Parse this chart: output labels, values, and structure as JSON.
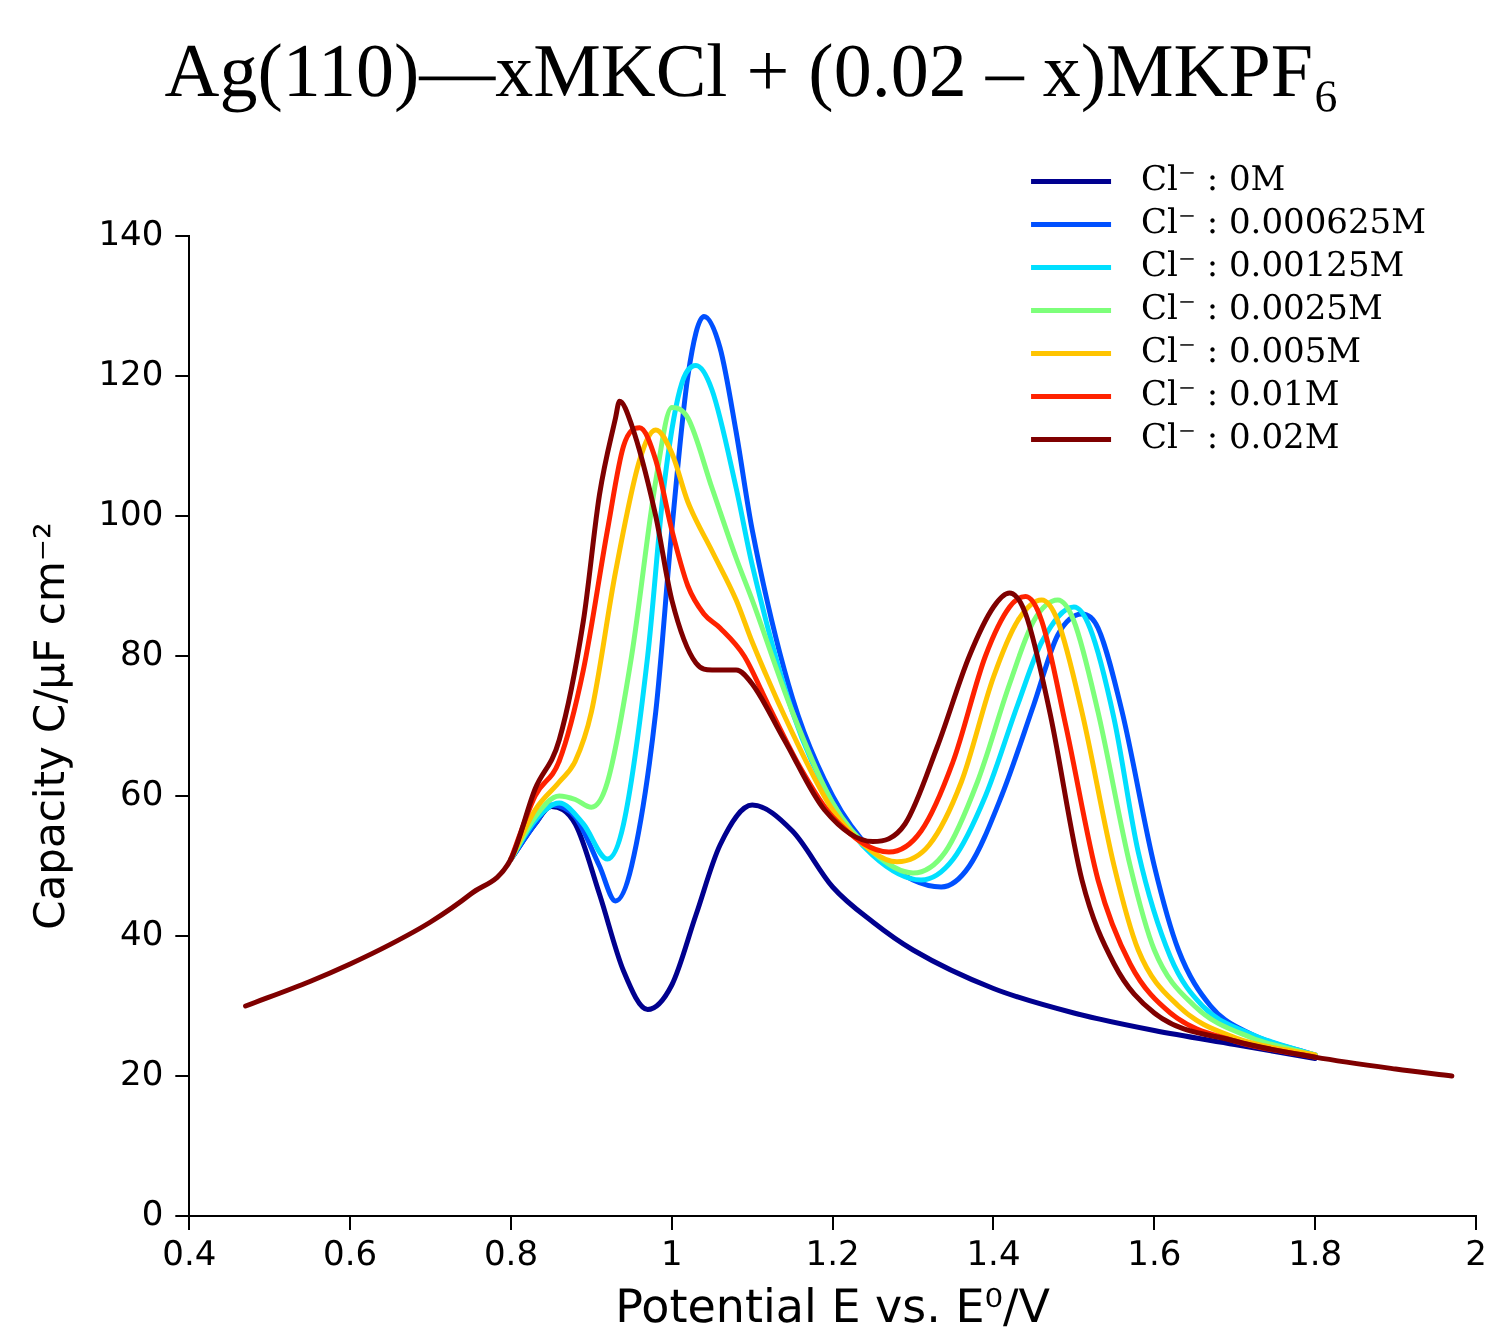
{
  "chart_data": {
    "type": "line",
    "title": "Ag(110)—xMKCl + (0.02 – x)MKPF₆",
    "xlabel": "Potential E vs. E⁰/V",
    "ylabel": "Capacity C/μF cm⁻²",
    "xlim": [
      0.4,
      2
    ],
    "xticks": [
      0.4,
      0.6,
      0.8,
      1,
      1.2,
      1.4,
      1.6,
      1.8,
      2
    ],
    "ylim": [
      0,
      140
    ],
    "yticks": [
      0,
      20,
      40,
      60,
      80,
      100,
      120,
      140
    ],
    "legend": "top right",
    "marker": "none",
    "line_style": "solid",
    "series": [
      {
        "name": "Cl⁻ : 0M",
        "color": "#00008f",
        "x": [
          0.8,
          0.83,
          0.85,
          0.88,
          0.91,
          0.94,
          0.97,
          1.0,
          1.03,
          1.06,
          1.1,
          1.15,
          1.2,
          1.25,
          1.3,
          1.4,
          1.5,
          1.6,
          1.7,
          1.8
        ],
        "values": [
          51,
          56,
          58.5,
          56,
          46,
          35,
          29.5,
          33,
          43,
          53,
          58.7,
          55,
          47,
          42,
          38,
          32.5,
          29,
          26.5,
          24.5,
          22.5
        ]
      },
      {
        "name": "Cl⁻ : 0.000625M",
        "color": "#0050ff",
        "x": [
          0.8,
          0.83,
          0.85,
          0.88,
          0.91,
          0.93,
          0.95,
          0.98,
          1.0,
          1.02,
          1.04,
          1.06,
          1.08,
          1.1,
          1.15,
          1.2,
          1.25,
          1.3,
          1.335,
          1.37,
          1.41,
          1.45,
          1.48,
          1.51,
          1.53,
          1.56,
          1.6,
          1.63,
          1.67,
          1.72,
          1.8
        ],
        "values": [
          51,
          56,
          58.7,
          57,
          50,
          45,
          50,
          72,
          98,
          120,
          128.5,
          124,
          112,
          98,
          74,
          60,
          52,
          48,
          47,
          50,
          60,
          73,
          83,
          86,
          84,
          72,
          50,
          38,
          30,
          26,
          23
        ]
      },
      {
        "name": "Cl⁻ : 0.00125M",
        "color": "#00dfff",
        "x": [
          0.8,
          0.83,
          0.86,
          0.89,
          0.92,
          0.94,
          0.97,
          0.99,
          1.01,
          1.03,
          1.05,
          1.08,
          1.1,
          1.15,
          1.2,
          1.25,
          1.31,
          1.35,
          1.39,
          1.43,
          1.46,
          1.5,
          1.52,
          1.55,
          1.58,
          1.62,
          1.66,
          1.72,
          1.8
        ],
        "values": [
          51,
          56.5,
          59,
          56,
          51,
          56,
          80,
          104,
          118,
          121.5,
          118,
          104,
          93,
          72,
          59,
          51.5,
          48,
          51,
          60,
          73,
          82,
          87,
          84,
          71,
          52,
          37,
          30,
          26,
          23
        ]
      },
      {
        "name": "Cl⁻ : 0.0025M",
        "color": "#7dff7a",
        "x": [
          0.8,
          0.83,
          0.86,
          0.88,
          0.9,
          0.92,
          0.95,
          0.98,
          1.0,
          1.02,
          1.05,
          1.08,
          1.1,
          1.15,
          1.2,
          1.25,
          1.3,
          1.34,
          1.38,
          1.42,
          1.45,
          1.48,
          1.5,
          1.53,
          1.57,
          1.6,
          1.65,
          1.72,
          1.8
        ],
        "values": [
          51,
          57,
          60,
          59.5,
          58.4,
          62,
          80,
          105,
          115.5,
          114,
          104,
          94,
          88,
          72,
          59,
          52,
          49,
          52,
          62,
          76,
          85,
          88,
          85,
          72,
          50,
          38,
          30,
          25.5,
          23
        ]
      },
      {
        "name": "Cl⁻ : 0.005M",
        "color": "#ffc400",
        "x": [
          0.8,
          0.83,
          0.86,
          0.88,
          0.9,
          0.93,
          0.96,
          0.98,
          1.0,
          1.02,
          1.05,
          1.08,
          1.1,
          1.15,
          1.2,
          1.25,
          1.28,
          1.32,
          1.36,
          1.4,
          1.43,
          1.46,
          1.48,
          1.51,
          1.55,
          1.58,
          1.63,
          1.7,
          1.8
        ],
        "values": [
          51,
          58,
          62,
          65,
          72,
          92,
          108,
          112.3,
          109,
          102,
          95,
          88,
          82,
          69,
          58,
          52,
          50.6,
          53,
          62,
          77,
          85,
          88,
          85,
          72,
          50,
          38,
          30,
          25.5,
          23
        ]
      },
      {
        "name": "Cl⁻ : 0.01M",
        "color": "#ff2200",
        "x": [
          0.8,
          0.83,
          0.86,
          0.89,
          0.92,
          0.94,
          0.96,
          0.98,
          1.0,
          1.02,
          1.04,
          1.06,
          1.09,
          1.12,
          1.16,
          1.2,
          1.27,
          1.31,
          1.35,
          1.39,
          1.42,
          1.44,
          1.46,
          1.49,
          1.53,
          1.57,
          1.62,
          1.7,
          1.8
        ],
        "values": [
          51,
          60,
          65,
          78,
          98,
          110,
          112.6,
          108,
          98,
          90,
          86,
          84,
          80,
          73,
          64,
          57,
          52,
          55,
          65,
          80,
          87,
          88.5,
          85,
          70,
          48,
          36,
          29,
          25,
          22.7
        ]
      },
      {
        "name": "Cl⁻ : 0.02M",
        "color": "#7f0000",
        "x": [
          0.47,
          0.55,
          0.6,
          0.65,
          0.7,
          0.75,
          0.8,
          0.83,
          0.86,
          0.89,
          0.91,
          0.93,
          0.935,
          0.95,
          0.98,
          1.0,
          1.03,
          1.05,
          1.08,
          1.1,
          1.14,
          1.19,
          1.25,
          1.29,
          1.33,
          1.37,
          1.4,
          1.42,
          1.44,
          1.47,
          1.51,
          1.55,
          1.6,
          1.7,
          1.8,
          1.9,
          1.97
        ],
        "values": [
          30,
          33.5,
          36,
          38.8,
          42,
          46,
          51,
          61,
          68,
          85,
          103,
          114,
          116.4,
          113,
          100,
          88,
          79,
          78,
          78,
          76,
          68,
          58,
          53.5,
          56,
          67,
          80,
          87,
          89,
          86,
          72,
          48,
          36,
          29,
          25,
          22.7,
          21,
          20
        ]
      }
    ]
  }
}
